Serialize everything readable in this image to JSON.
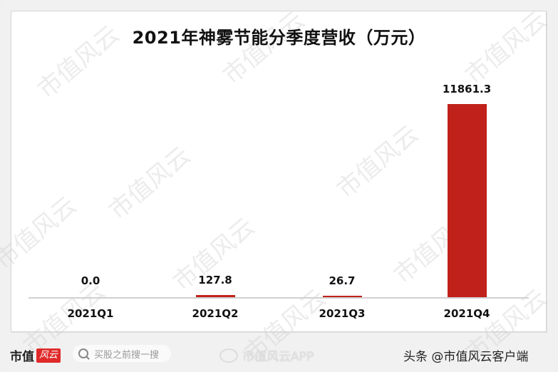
{
  "chart_data": {
    "type": "bar",
    "title": "2021年神雾节能分季度营收（万元）",
    "categories": [
      "2021Q1",
      "2021Q2",
      "2021Q3",
      "2021Q4"
    ],
    "values": [
      0.0,
      127.8,
      26.7,
      11861.3
    ],
    "value_labels": [
      "0.0",
      "127.8",
      "26.7",
      "11861.3"
    ],
    "xlabel": "",
    "ylabel": "",
    "unit": "万元",
    "bar_color": "#c0211a",
    "grid": false,
    "legend": "none",
    "ylim": [
      0,
      11861.3
    ]
  },
  "watermark": "市值风云",
  "footer": {
    "logo_text": "市值",
    "logo_badge": "风云",
    "search_placeholder": "买股之前搜一搜",
    "weibo_text": "市值风云APP",
    "toutiao_text": "头条 @市值风云客户端"
  }
}
